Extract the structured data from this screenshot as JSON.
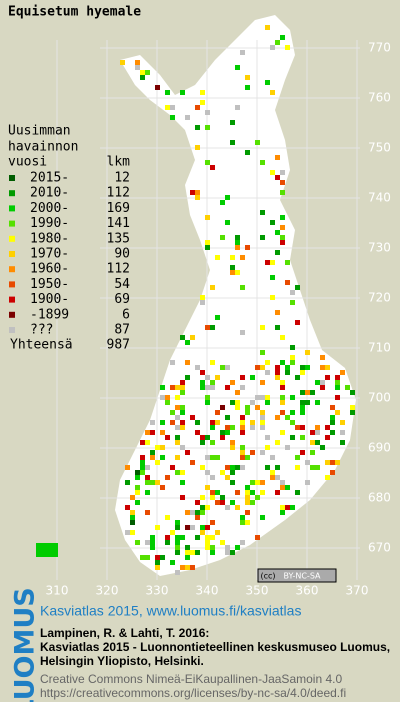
{
  "map": {
    "title": "Equisetum hyemale",
    "legend": {
      "heading": [
        "Uusimman",
        "havainnon"
      ],
      "column_year": "vuosi",
      "column_count": "lkm",
      "rows": [
        {
          "label": "2015-",
          "count": 12,
          "color": "#005c00"
        },
        {
          "label": "2010-",
          "count": 112,
          "color": "#009a00"
        },
        {
          "label": "2000-",
          "count": 169,
          "color": "#00cc00"
        },
        {
          "label": "1990-",
          "count": 141,
          "color": "#55e000"
        },
        {
          "label": "1980-",
          "count": 135,
          "color": "#ffff00"
        },
        {
          "label": "1970-",
          "count": 90,
          "color": "#ffd000"
        },
        {
          "label": "1960-",
          "count": 112,
          "color": "#ff8c00"
        },
        {
          "label": "1950-",
          "count": 54,
          "color": "#e84a00"
        },
        {
          "label": "1900-",
          "count": 69,
          "color": "#cc0000"
        },
        {
          "label": "-1899",
          "count": 6,
          "color": "#7a0000"
        },
        {
          "label": "???",
          "count": 87,
          "color": "#c0c0c0"
        }
      ],
      "total_label": "Yhteensä",
      "total": 987
    },
    "y_grid": [
      770,
      760,
      750,
      740,
      730,
      720,
      710,
      700,
      690,
      680,
      670
    ],
    "x_grid": [
      310,
      320,
      330,
      340,
      350,
      360,
      370
    ],
    "license_badge": "BY-NC-SA"
  },
  "footer": {
    "logo": "LUOMUS",
    "headline": "Kasviatlas 2015, www.luomus.fi/kasviatlas",
    "citation": [
      "Lampinen, R. & Lahti, T. 2016:",
      "Kasviatlas 2015 - Luonnontieteellinen keskusmuseo Luomus,",
      "Helsingin Yliopisto, Helsinki."
    ],
    "license": [
      "Creative Commons Nimeä-EiKaupallinen-JaaSamoin 4.0",
      "https://creativecommons.org/licenses/by-nc-sa/4.0/deed.fi"
    ]
  }
}
